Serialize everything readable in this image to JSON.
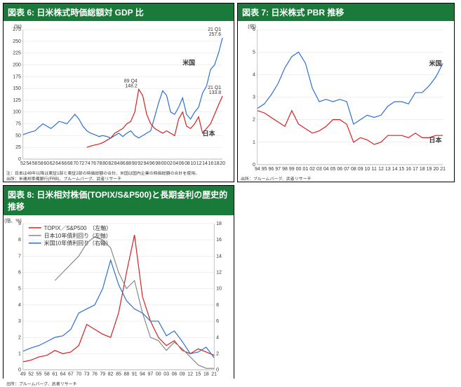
{
  "colors": {
    "title_bg": "#1a7a3a",
    "us": "#2d6fd2",
    "jp": "#d62020",
    "jp_gray": "#888888",
    "axis": "#888888",
    "grid": "#e0e0e0",
    "text": "#333333",
    "bg": "#ffffff"
  },
  "typography": {
    "title_fontsize": 12,
    "tick_fontsize": 7,
    "label_fontsize": 9
  },
  "chart6": {
    "title": "図表 6: 日米株式時価総額対 GDP 比",
    "type": "line",
    "y_label": "(%)",
    "ylim": [
      0,
      275
    ],
    "ytick_step": 25,
    "x_start": 52,
    "x_end": 21,
    "xtick_step": 2,
    "x_ticks": [
      "52",
      "54",
      "56",
      "58",
      "60",
      "62",
      "64",
      "66",
      "68",
      "70",
      "72",
      "74",
      "76",
      "78",
      "80",
      "82",
      "84",
      "86",
      "88",
      "90",
      "92",
      "94",
      "96",
      "98",
      "00",
      "02",
      "04",
      "06",
      "08",
      "10",
      "12",
      "14",
      "16",
      "18",
      "20"
    ],
    "series": [
      {
        "name": "米国",
        "color": "#2d6fd2",
        "data": [
          52,
          55,
          58,
          60,
          68,
          75,
          70,
          65,
          72,
          80,
          78,
          75,
          85,
          95,
          85,
          70,
          60,
          55,
          52,
          48,
          50,
          48,
          45,
          50,
          55,
          48,
          55,
          60,
          50,
          45,
          50,
          55,
          60,
          90,
          120,
          145,
          135,
          100,
          95,
          110,
          130,
          95,
          85,
          100,
          110,
          140,
          155,
          190,
          200,
          225,
          257.6
        ]
      },
      {
        "name": "日本",
        "color": "#d62020",
        "data": [
          null,
          null,
          null,
          null,
          null,
          null,
          null,
          null,
          null,
          null,
          null,
          null,
          null,
          null,
          null,
          null,
          25,
          28,
          30,
          32,
          35,
          40,
          45,
          55,
          60,
          65,
          75,
          80,
          100,
          148.2,
          135,
          95,
          75,
          65,
          60,
          55,
          60,
          55,
          50,
          85,
          100,
          70,
          65,
          75,
          90,
          55,
          65,
          75,
          95,
          115,
          133.8
        ]
      }
    ],
    "annotations": [
      {
        "text": "89 Q4\n148.2",
        "x_idx": 29,
        "y": 148.2
      },
      {
        "text": "21 Q1\n257.6",
        "x_idx": 50,
        "y": 257.6
      },
      {
        "text": "21 Q1\n133.8",
        "x_idx": 50,
        "y": 133.8
      }
    ],
    "series_labels": [
      {
        "text": "米国",
        "x_idx": 40,
        "y": 200,
        "color": "#2d6fd2"
      },
      {
        "text": "日本",
        "x_idx": 45,
        "y": 50,
        "color": "#d62020"
      }
    ],
    "footnote": "注：日本は49年以降は東証1部と東証2部の時価総額の合計、米国は国内企業の時価総額の合計を使用。\n出所：米連邦準備銀行(FRB)、ブルームバーグ、武者リサーチ"
  },
  "chart7": {
    "title": "図表 7: 日米株式 PBR 推移",
    "type": "line",
    "y_label": "(倍)",
    "ylim": [
      0,
      6
    ],
    "ytick_step": 1,
    "x_ticks": [
      "94",
      "95",
      "96",
      "97",
      "98",
      "99",
      "00",
      "01",
      "02",
      "03",
      "04",
      "05",
      "06",
      "07",
      "08",
      "09",
      "10",
      "11",
      "12",
      "13",
      "14",
      "15",
      "16",
      "17",
      "18",
      "19",
      "20",
      "21"
    ],
    "series": [
      {
        "name": "米国",
        "color": "#2d6fd2",
        "data": [
          2.5,
          2.7,
          3.1,
          3.6,
          4.3,
          4.8,
          5.0,
          4.5,
          3.4,
          2.8,
          2.9,
          2.8,
          2.9,
          2.8,
          1.8,
          2.0,
          2.2,
          2.1,
          2.2,
          2.6,
          2.8,
          2.8,
          2.7,
          3.2,
          3.2,
          3.5,
          3.9,
          4.5
        ]
      },
      {
        "name": "日本",
        "color": "#d62020",
        "data": [
          2.4,
          2.3,
          2.1,
          1.9,
          1.7,
          2.4,
          1.8,
          1.6,
          1.4,
          1.5,
          1.7,
          2.0,
          2.0,
          1.8,
          1.0,
          1.2,
          1.1,
          0.9,
          1.0,
          1.3,
          1.3,
          1.3,
          1.2,
          1.4,
          1.2,
          1.2,
          1.3,
          1.3
        ]
      }
    ],
    "series_labels": [
      {
        "text": "米国",
        "x_idx": 25,
        "y": 4.4,
        "color": "#2d6fd2"
      },
      {
        "text": "日本",
        "x_idx": 25,
        "y": 1.0,
        "color": "#d62020"
      }
    ],
    "footnote": "出所：ブルームバーグ、武者リサーチ"
  },
  "chart8": {
    "title": "図表 8: 日米相対株価(TOPIX/S&P500)と長期金利の歴史的推移",
    "type": "line-dual-axis",
    "y_label_left": "(倍、%)",
    "ylim_left": [
      0,
      9
    ],
    "ytick_step_left": 1,
    "ylim_right": [
      0,
      18
    ],
    "ytick_step_right": 2,
    "x_ticks": [
      "49",
      "52",
      "55",
      "58",
      "61",
      "64",
      "67",
      "70",
      "73",
      "76",
      "79",
      "82",
      "85",
      "88",
      "91",
      "94",
      "97",
      "00",
      "03",
      "06",
      "09",
      "12",
      "15",
      "18",
      "21"
    ],
    "legend": [
      {
        "text": "TOPIX／S&P500　（左軸）",
        "color": "#d62020"
      },
      {
        "text": "日本10年債利回り（左軸）",
        "color": "#888888"
      },
      {
        "text": "米国10年債利回り（右軸）",
        "color": "#2d6fd2"
      }
    ],
    "series": [
      {
        "name": "TOPIX/S&P500",
        "color": "#d62020",
        "axis": "left",
        "data": [
          0.5,
          0.6,
          0.8,
          0.9,
          1.2,
          1.0,
          1.1,
          1.5,
          2.8,
          2.5,
          2.2,
          2.0,
          3.5,
          6.0,
          8.3,
          4.5,
          3.0,
          2.0,
          1.5,
          1.8,
          1.2,
          1.0,
          1.3,
          1.1,
          0.9
        ]
      },
      {
        "name": "日本10年債",
        "color": "#888888",
        "axis": "left",
        "data": [
          null,
          null,
          null,
          null,
          5.5,
          6.0,
          6.5,
          7.0,
          7.8,
          8.2,
          8.0,
          7.5,
          6.0,
          5.0,
          5.5,
          3.5,
          2.0,
          1.8,
          1.2,
          1.7,
          1.3,
          0.8,
          0.3,
          0.1,
          0.1
        ]
      },
      {
        "name": "米国10年債",
        "color": "#2d6fd2",
        "axis": "right",
        "data": [
          2.3,
          2.7,
          3.0,
          3.5,
          4.0,
          4.2,
          5.0,
          7.0,
          7.5,
          8.0,
          10.0,
          13.5,
          10.5,
          8.5,
          7.5,
          7.0,
          6.0,
          6.0,
          4.2,
          4.8,
          3.5,
          2.0,
          2.2,
          2.8,
          1.5
        ]
      }
    ],
    "footnote": "出所：ブルームバーグ、武者リサーチ"
  }
}
